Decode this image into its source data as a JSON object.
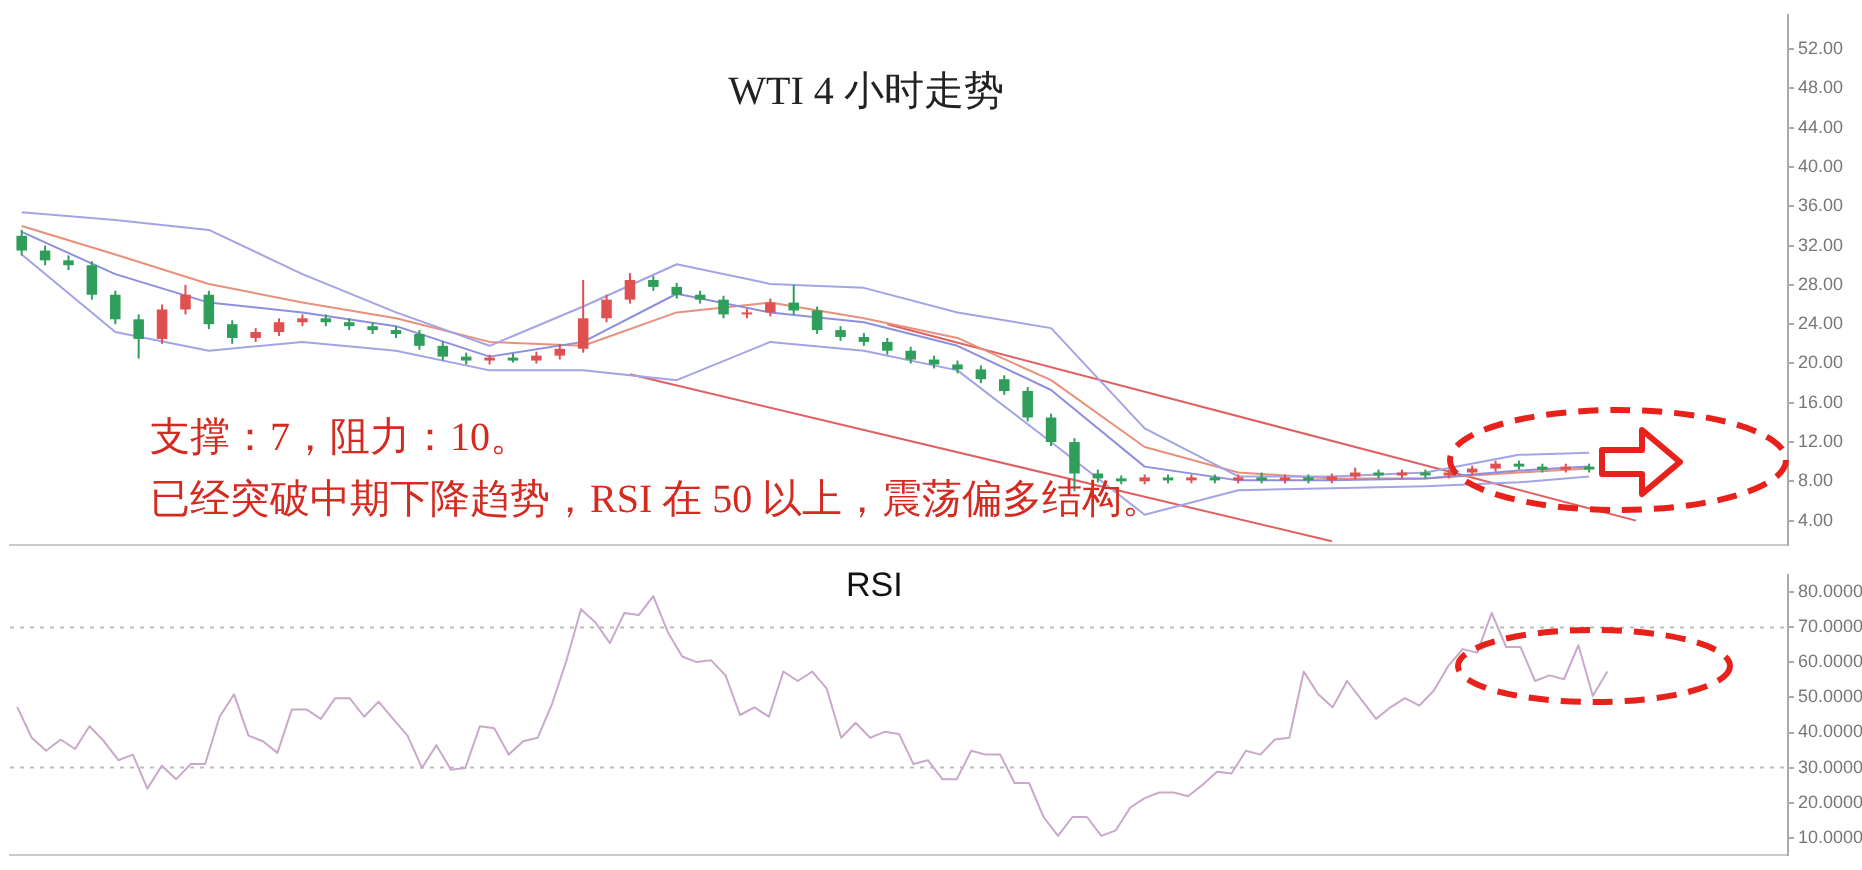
{
  "chart_data": [
    {
      "type": "candlestick",
      "title": "WTI 4 小时走势",
      "categories": [
        null,
        null,
        null,
        null,
        null,
        null,
        null,
        null,
        null,
        null,
        null,
        null,
        null,
        null,
        null,
        null,
        null,
        null,
        null,
        null,
        null,
        null,
        null,
        null,
        null,
        null,
        null,
        null,
        null,
        null,
        null,
        null,
        null,
        null,
        null,
        null,
        null,
        null,
        null,
        null,
        null,
        null,
        null,
        null,
        null,
        null,
        null,
        null,
        null,
        null,
        null,
        null,
        null,
        null,
        null,
        null,
        null,
        null,
        null,
        null,
        null,
        null,
        null,
        null,
        null,
        null,
        null,
        null,
        null,
        null,
        null,
        null,
        null,
        null,
        null,
        null
      ],
      "ohlc": [
        [
          33.0,
          33.6,
          31.0,
          31.5
        ],
        [
          31.5,
          32.0,
          30.0,
          30.5
        ],
        [
          30.5,
          31.0,
          29.5,
          30.0
        ],
        [
          30.0,
          30.4,
          26.5,
          27.0
        ],
        [
          27.0,
          27.4,
          24.0,
          24.5
        ],
        [
          24.5,
          25.0,
          20.5,
          22.5
        ],
        [
          22.5,
          26.0,
          22.0,
          25.5
        ],
        [
          25.5,
          28.0,
          25.0,
          27.0
        ],
        [
          27.0,
          27.4,
          23.5,
          24.0
        ],
        [
          24.0,
          24.4,
          22.0,
          22.6
        ],
        [
          22.6,
          23.6,
          22.2,
          23.2
        ],
        [
          23.2,
          24.6,
          22.8,
          24.2
        ],
        [
          24.2,
          25.0,
          23.8,
          24.6
        ],
        [
          24.6,
          25.0,
          23.8,
          24.2
        ],
        [
          24.2,
          24.6,
          23.4,
          23.8
        ],
        [
          23.8,
          24.2,
          23.0,
          23.4
        ],
        [
          23.4,
          23.8,
          22.6,
          23.0
        ],
        [
          23.0,
          23.4,
          21.4,
          21.8
        ],
        [
          21.8,
          22.2,
          20.3,
          20.7
        ],
        [
          20.7,
          21.1,
          19.9,
          20.3
        ],
        [
          20.3,
          20.9,
          19.9,
          20.6
        ],
        [
          20.6,
          21.0,
          20.1,
          20.3
        ],
        [
          20.3,
          21.2,
          20.0,
          20.8
        ],
        [
          20.8,
          22.0,
          20.4,
          21.5
        ],
        [
          21.5,
          28.5,
          21.1,
          24.6
        ],
        [
          24.6,
          27.0,
          24.2,
          26.5
        ],
        [
          26.5,
          29.2,
          26.1,
          28.5
        ],
        [
          28.5,
          28.9,
          27.4,
          27.8
        ],
        [
          27.8,
          28.2,
          26.6,
          27.0
        ],
        [
          27.0,
          27.4,
          26.1,
          26.5
        ],
        [
          26.5,
          26.9,
          24.6,
          25.0
        ],
        [
          25.0,
          25.6,
          24.6,
          25.2
        ],
        [
          25.2,
          26.6,
          24.8,
          26.2
        ],
        [
          26.2,
          28.0,
          25.0,
          25.4
        ],
        [
          25.4,
          25.8,
          23.0,
          23.4
        ],
        [
          23.4,
          23.8,
          22.3,
          22.7
        ],
        [
          22.7,
          23.1,
          21.8,
          22.2
        ],
        [
          22.2,
          22.6,
          20.9,
          21.3
        ],
        [
          21.3,
          21.7,
          20.0,
          20.4
        ],
        [
          20.4,
          20.8,
          19.5,
          19.9
        ],
        [
          19.9,
          20.3,
          19.0,
          19.4
        ],
        [
          19.4,
          19.8,
          18.0,
          18.4
        ],
        [
          18.4,
          18.8,
          16.8,
          17.2
        ],
        [
          17.2,
          17.6,
          14.1,
          14.5
        ],
        [
          14.5,
          14.9,
          11.6,
          12.0
        ],
        [
          12.0,
          12.4,
          7.0,
          8.8
        ],
        [
          8.8,
          9.2,
          7.9,
          8.3
        ],
        [
          8.3,
          8.6,
          7.7,
          8.0
        ],
        [
          8.0,
          8.7,
          7.7,
          8.4
        ],
        [
          8.4,
          8.7,
          7.8,
          8.1
        ],
        [
          8.1,
          8.7,
          7.8,
          8.4
        ],
        [
          8.4,
          8.7,
          7.8,
          8.1
        ],
        [
          8.1,
          8.7,
          7.8,
          8.4
        ],
        [
          8.4,
          8.9,
          7.8,
          8.1
        ],
        [
          8.1,
          8.7,
          7.8,
          8.4
        ],
        [
          8.4,
          8.7,
          7.8,
          8.1
        ],
        [
          8.1,
          8.8,
          7.8,
          8.5
        ],
        [
          8.5,
          9.4,
          8.2,
          8.9
        ],
        [
          8.9,
          9.2,
          8.3,
          8.6
        ],
        [
          8.6,
          9.2,
          8.3,
          8.9
        ],
        [
          8.9,
          9.2,
          8.3,
          8.6
        ],
        [
          8.6,
          9.2,
          8.3,
          8.9
        ],
        [
          8.9,
          9.6,
          8.6,
          9.3
        ],
        [
          9.3,
          10.1,
          9.0,
          9.8
        ],
        [
          9.8,
          10.1,
          9.2,
          9.5
        ],
        [
          9.5,
          9.8,
          8.9,
          9.2
        ],
        [
          9.2,
          9.8,
          8.9,
          9.5
        ],
        [
          9.5,
          9.8,
          8.9,
          9.2
        ],
        null,
        null,
        null,
        null,
        null,
        null,
        null,
        null
      ],
      "colors": [
        "#2f9e5a",
        "#2f9e5a",
        "#2f9e5a",
        "#2f9e5a",
        "#2f9e5a",
        "#2f9e5a",
        "#e05050",
        "#e05050",
        "#2f9e5a",
        "#2f9e5a",
        "#e05050",
        "#e05050",
        "#e05050",
        "#2f9e5a",
        "#2f9e5a",
        "#2f9e5a",
        "#2f9e5a",
        "#2f9e5a",
        "#2f9e5a",
        "#2f9e5a",
        "#e05050",
        "#2f9e5a",
        "#e05050",
        "#e05050",
        "#e05050",
        "#e05050",
        "#e05050",
        "#2f9e5a",
        "#2f9e5a",
        "#2f9e5a",
        "#2f9e5a",
        "#e05050",
        "#e05050",
        "#2f9e5a",
        "#2f9e5a",
        "#2f9e5a",
        "#2f9e5a",
        "#2f9e5a",
        "#2f9e5a",
        "#2f9e5a",
        "#2f9e5a",
        "#2f9e5a",
        "#2f9e5a",
        "#2f9e5a",
        "#2f9e5a",
        "#2f9e5a",
        "#2f9e5a",
        "#2f9e5a",
        "#e05050",
        "#2f9e5a",
        "#e05050",
        "#2f9e5a",
        "#e05050",
        "#2f9e5a",
        "#e05050",
        "#2f9e5a",
        "#e05050",
        "#e05050",
        "#2f9e5a",
        "#e05050",
        "#2f9e5a",
        "#e05050",
        "#e05050",
        "#e05050",
        "#2f9e5a",
        "#2f9e5a",
        "#e05050",
        "#2f9e5a",
        null,
        null,
        null,
        null,
        null,
        null,
        null,
        null
      ],
      "series": [
        {
          "type": "line",
          "color": "#a3a3e6",
          "values": [
            35.4,
            null,
            null,
            null,
            34.6,
            null,
            null,
            null,
            33.6,
            null,
            null,
            null,
            29.1,
            null,
            null,
            null,
            25.2,
            null,
            null,
            null,
            21.8,
            null,
            null,
            null,
            25.8,
            null,
            null,
            null,
            30.1,
            null,
            null,
            null,
            28.1,
            null,
            null,
            null,
            27.7,
            null,
            null,
            null,
            25.2,
            null,
            null,
            null,
            23.6,
            null,
            null,
            null,
            13.4,
            null,
            null,
            null,
            8.5,
            null,
            null,
            null,
            8.5,
            null,
            null,
            null,
            8.9,
            null,
            null,
            null,
            10.7,
            null,
            null,
            10.9,
            null,
            null,
            null,
            null,
            null,
            null,
            null,
            null
          ]
        },
        {
          "type": "line",
          "color": "#8e8ee0",
          "values": [
            33.4,
            null,
            null,
            null,
            29.1,
            null,
            null,
            null,
            26.2,
            null,
            null,
            null,
            25.2,
            null,
            null,
            null,
            23.8,
            null,
            null,
            null,
            20.7,
            null,
            null,
            null,
            22.2,
            null,
            null,
            null,
            27.1,
            null,
            null,
            null,
            25.2,
            null,
            null,
            null,
            24.2,
            null,
            null,
            null,
            21.8,
            null,
            null,
            null,
            17.3,
            null,
            null,
            null,
            9.5,
            null,
            null,
            null,
            8.1,
            null,
            null,
            null,
            8.1,
            null,
            null,
            null,
            8.3,
            null,
            null,
            null,
            9.1,
            null,
            null,
            9.5,
            null,
            null,
            null,
            null,
            null,
            null,
            null,
            null
          ]
        },
        {
          "type": "line",
          "color": "#a3a3e6",
          "values": [
            31.1,
            null,
            null,
            null,
            23.2,
            null,
            null,
            null,
            21.3,
            null,
            null,
            null,
            22.2,
            null,
            null,
            null,
            21.3,
            null,
            null,
            null,
            19.3,
            null,
            null,
            null,
            19.3,
            null,
            null,
            null,
            18.3,
            null,
            null,
            null,
            22.2,
            null,
            null,
            null,
            21.3,
            null,
            null,
            null,
            19.3,
            null,
            null,
            null,
            12.0,
            null,
            null,
            null,
            4.6,
            null,
            null,
            null,
            7.1,
            null,
            null,
            null,
            7.3,
            null,
            null,
            null,
            7.5,
            null,
            null,
            null,
            7.9,
            null,
            null,
            8.5,
            null,
            null,
            null,
            null,
            null,
            null,
            null,
            null
          ]
        },
        {
          "type": "line",
          "color": "#e8907a",
          "values": [
            34.0,
            null,
            null,
            null,
            31.1,
            null,
            null,
            null,
            28.1,
            null,
            null,
            null,
            26.2,
            null,
            null,
            null,
            24.6,
            null,
            null,
            null,
            22.2,
            null,
            null,
            null,
            21.8,
            null,
            null,
            null,
            25.2,
            null,
            null,
            null,
            26.2,
            null,
            null,
            null,
            24.6,
            null,
            null,
            null,
            22.6,
            null,
            null,
            null,
            18.3,
            null,
            null,
            null,
            11.5,
            null,
            null,
            null,
            8.9,
            null,
            null,
            null,
            8.3,
            null,
            null,
            null,
            8.3,
            null,
            null,
            null,
            8.9,
            null,
            null,
            9.3,
            null,
            null,
            null,
            null,
            null,
            null,
            null,
            null
          ]
        },
        {
          "type": "line",
          "color": "#e06060",
          "values": [
            null,
            null,
            null,
            null,
            null,
            null,
            null,
            null,
            null,
            null,
            null,
            null,
            null,
            null,
            null,
            null,
            null,
            null,
            null,
            null,
            null,
            null,
            null,
            null,
            null,
            null,
            null,
            null,
            null,
            null,
            null,
            null,
            null,
            null,
            null,
            null,
            null,
            24.0,
            null,
            null,
            null,
            null,
            null,
            null,
            null,
            null,
            null,
            null,
            null,
            null,
            null,
            null,
            null,
            null,
            null,
            null,
            null,
            null,
            null,
            null,
            null,
            null,
            null,
            null,
            null,
            null,
            null,
            null,
            null,
            4.0,
            null,
            null,
            null,
            null,
            null,
            null
          ]
        },
        {
          "type": "line",
          "color": "#e06060",
          "values": [
            null,
            null,
            null,
            null,
            null,
            null,
            null,
            null,
            null,
            null,
            null,
            null,
            null,
            null,
            null,
            null,
            null,
            null,
            null,
            null,
            null,
            null,
            null,
            null,
            null,
            null,
            18.9,
            null,
            null,
            null,
            null,
            null,
            null,
            null,
            null,
            null,
            null,
            null,
            null,
            null,
            null,
            null,
            null,
            null,
            null,
            null,
            null,
            null,
            null,
            null,
            null,
            null,
            null,
            null,
            null,
            null,
            1.9,
            null,
            null,
            null,
            null,
            null,
            null,
            null,
            null,
            null,
            null,
            null,
            null,
            null,
            null,
            null,
            null,
            null,
            null,
            null
          ]
        }
      ],
      "ylim": [
        1.5,
        55.5
      ],
      "yticks": [
        {
          "value": 4,
          "label": "4.00"
        },
        {
          "value": 8,
          "label": "8.00"
        },
        {
          "value": 12,
          "label": "12.00"
        },
        {
          "value": 16,
          "label": "16.00"
        },
        {
          "value": 20,
          "label": "20.00"
        },
        {
          "value": 24,
          "label": "24.00"
        },
        {
          "value": 28,
          "label": "28.00"
        },
        {
          "value": 32,
          "label": "32.00"
        },
        {
          "value": 36,
          "label": "36.00"
        },
        {
          "value": 40,
          "label": "40.00"
        },
        {
          "value": 44,
          "label": "44.00"
        },
        {
          "value": 48,
          "label": "48.00"
        },
        {
          "value": 52,
          "label": "52.00"
        }
      ],
      "tick_labels": "y",
      "annotations": [
        "支撑：7，阻力：10。",
        "已经突破中期下降趋势，RSI 在 50 以上，震荡偏多结构。"
      ]
    },
    {
      "type": "line",
      "title": "RSI",
      "color": "#c9a9c9",
      "categories": [
        null,
        null,
        null,
        null,
        null,
        null,
        null,
        null,
        null,
        null,
        null,
        null,
        null,
        null,
        null,
        null,
        null,
        null,
        null,
        null,
        null,
        null,
        null,
        null,
        null,
        null,
        null,
        null,
        null,
        null,
        null,
        null,
        null,
        null,
        null,
        null,
        null,
        null,
        null,
        null,
        null,
        null,
        null,
        null,
        null,
        null,
        null,
        null,
        null,
        null,
        null,
        null,
        null,
        null,
        null,
        null,
        null,
        null,
        null,
        null,
        null,
        null,
        null,
        null,
        null,
        null,
        null,
        null,
        null,
        null,
        null,
        null,
        null,
        null,
        null,
        null,
        null,
        null,
        null,
        null,
        null,
        null,
        null,
        null,
        null,
        null,
        null,
        null,
        null,
        null,
        null,
        null,
        null,
        null,
        null,
        null,
        null,
        null,
        null,
        null,
        null,
        null,
        null,
        null,
        null,
        null,
        null,
        null,
        null,
        null,
        null,
        null,
        null,
        null,
        null,
        null,
        null,
        null,
        null,
        null,
        null,
        null,
        null
      ],
      "values": [
        47.3,
        38.5,
        34.8,
        38.0,
        35.3,
        41.8,
        37.5,
        32.1,
        33.7,
        24.0,
        30.5,
        26.7,
        31.0,
        31.0,
        44.5,
        50.9,
        39.1,
        37.5,
        34.2,
        46.6,
        46.6,
        43.9,
        49.8,
        49.8,
        44.5,
        48.8,
        43.9,
        39.1,
        29.9,
        36.4,
        29.4,
        29.9,
        41.8,
        41.2,
        33.7,
        37.5,
        38.5,
        48.2,
        60.6,
        75.2,
        71.4,
        65.5,
        74.1,
        73.5,
        78.9,
        68.7,
        61.7,
        60.1,
        60.6,
        56.3,
        45.0,
        47.2,
        44.5,
        57.4,
        54.7,
        57.4,
        52.5,
        38.5,
        42.8,
        38.5,
        40.2,
        39.6,
        31.0,
        32.1,
        26.7,
        26.7,
        34.8,
        33.7,
        33.7,
        25.6,
        25.6,
        15.9,
        10.5,
        15.9,
        15.9,
        10.5,
        12.1,
        18.6,
        21.3,
        22.9,
        22.9,
        21.8,
        25.1,
        28.8,
        28.3,
        34.8,
        33.7,
        38.0,
        38.5,
        57.4,
        50.9,
        47.2,
        54.7,
        49.3,
        43.9,
        47.2,
        49.8,
        47.7,
        52.0,
        59.0,
        63.8,
        62.8,
        74.1,
        64.4,
        64.4,
        54.7,
        56.3,
        55.2,
        64.9,
        50.4,
        57.4,
        null,
        null,
        null,
        null,
        null,
        null,
        null,
        null,
        null,
        null,
        null,
        null
      ],
      "ylim": [
        5,
        85
      ],
      "yticks": [
        {
          "value": 10,
          "label": "10.0000"
        },
        {
          "value": 20,
          "label": "20.0000"
        },
        {
          "value": 30,
          "label": "30.0000"
        },
        {
          "value": 40,
          "label": "40.0000"
        },
        {
          "value": 50,
          "label": "50.0000"
        },
        {
          "value": 60,
          "label": "60.0000"
        },
        {
          "value": 70,
          "label": "70.0000"
        },
        {
          "value": 80,
          "label": "80.0000"
        }
      ],
      "tick_labels": "y",
      "ref_lines": [
        {
          "axis": "y",
          "value": 70,
          "color": "#bbbbbb",
          "line_style": "dotted"
        },
        {
          "axis": "y",
          "value": 30,
          "color": "#bbbbbb",
          "line_style": "dotted"
        }
      ]
    }
  ]
}
